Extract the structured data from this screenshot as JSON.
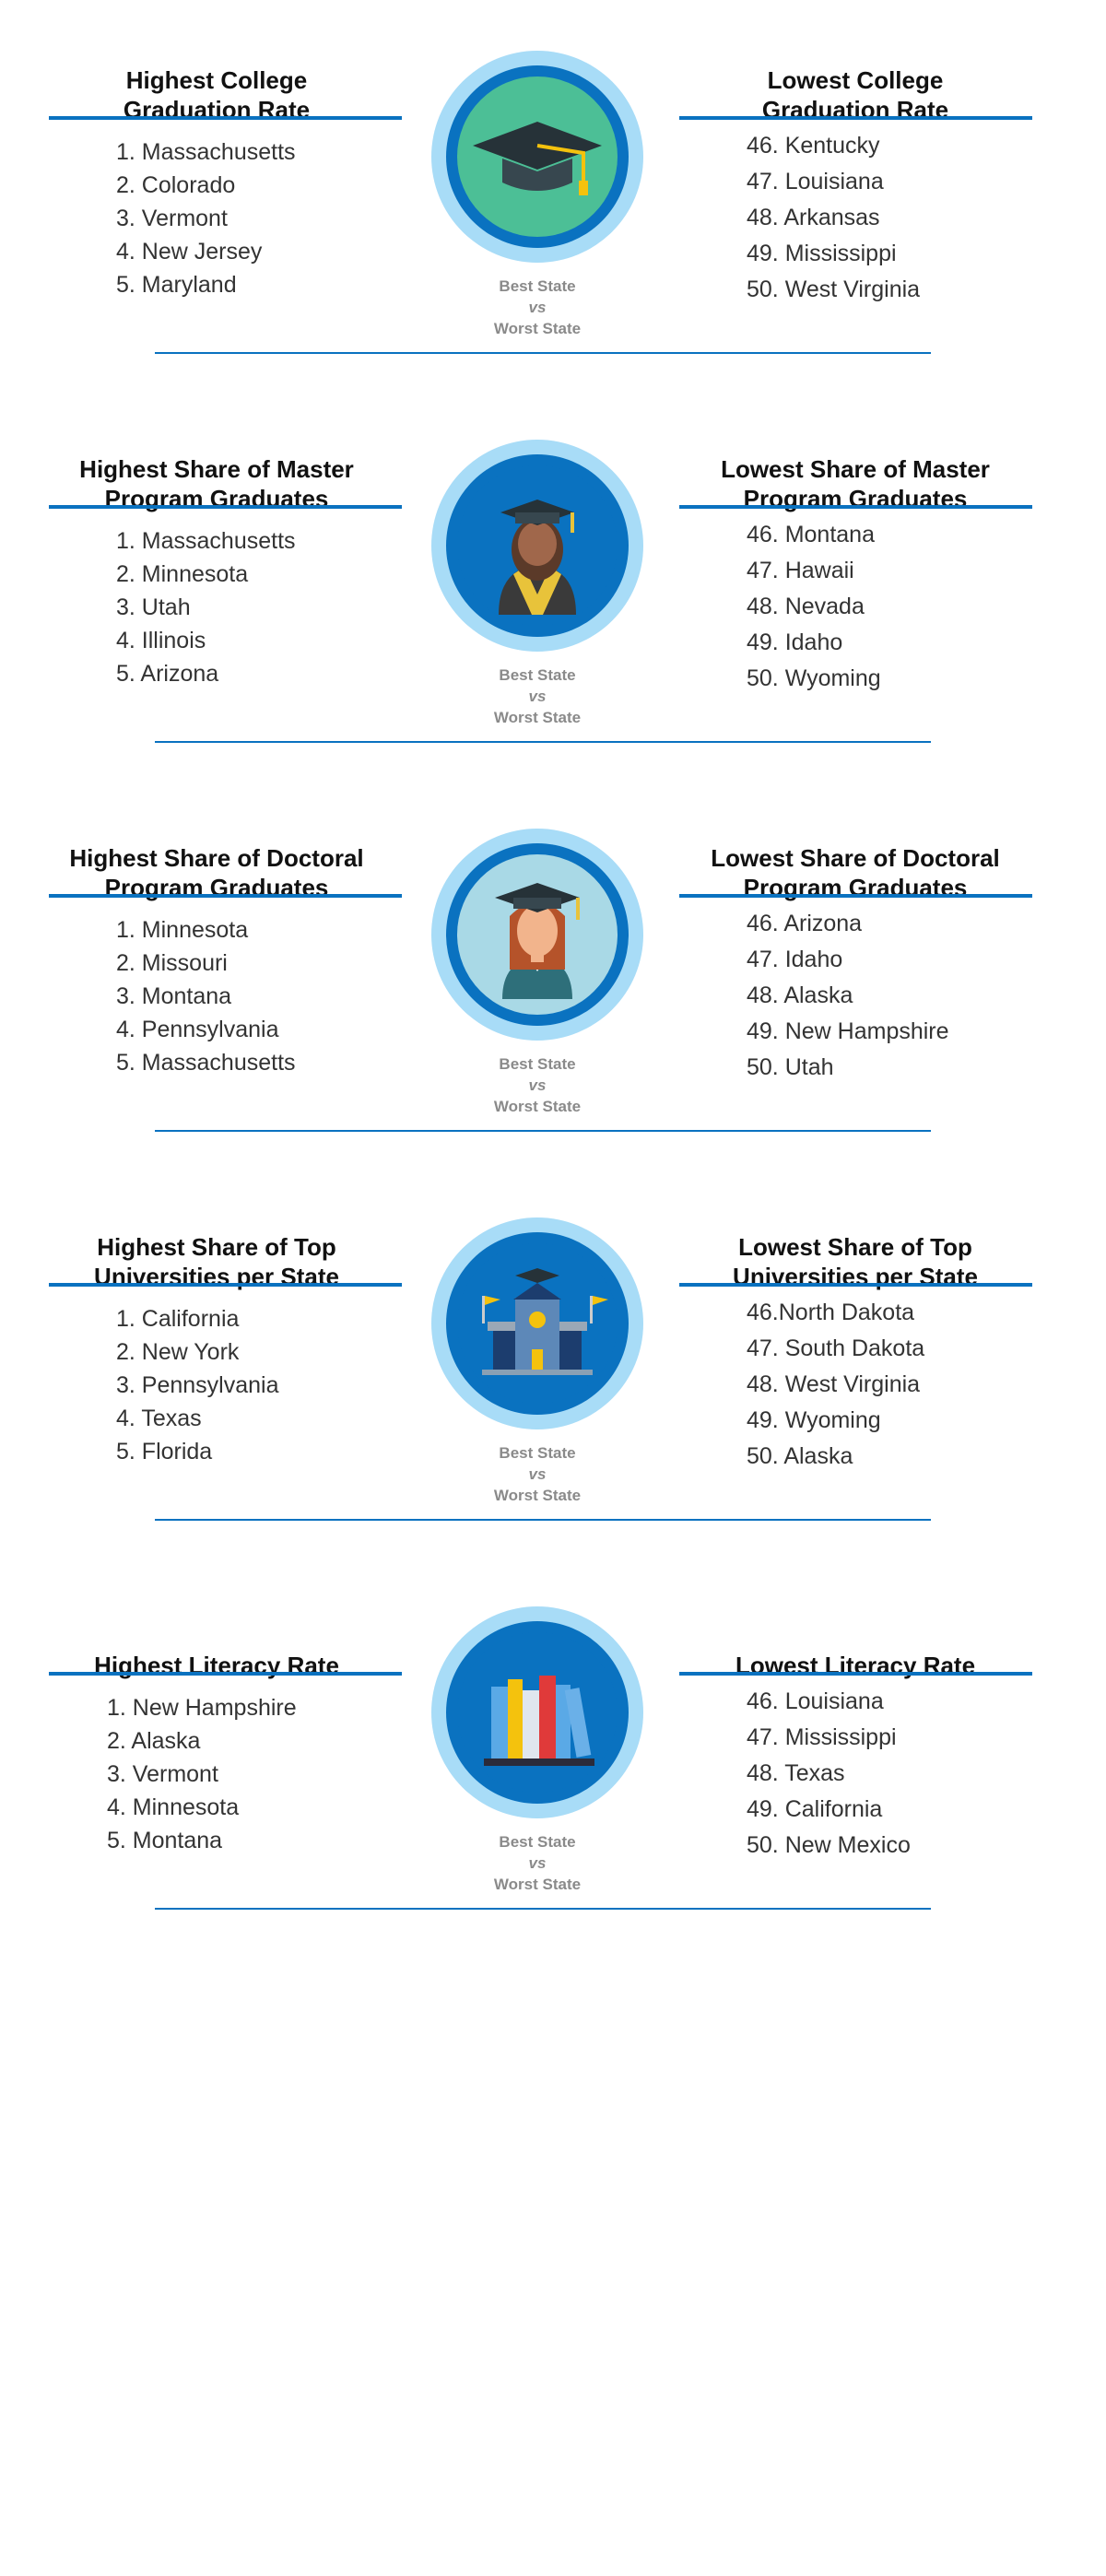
{
  "sections": [
    {
      "left": {
        "title": [
          "Highest College",
          "Graduation Rate"
        ],
        "items": [
          "1. Massachusetts",
          "2. Colorado",
          "3. Vermont",
          "4. New Jersey",
          "5. Maryland"
        ]
      },
      "center": [
        "Best State",
        "vs",
        "Worst State"
      ],
      "right": {
        "title": [
          "Lowest College",
          "Graduation Rate"
        ],
        "items": [
          "46. Kentucky",
          "47. Louisiana",
          "48. Arkansas",
          "49. Mississippi",
          "50. West Virginia"
        ]
      }
    },
    {
      "left": {
        "title": [
          "Highest Share of Master",
          "Program Graduates"
        ],
        "items": [
          "1. Massachusetts",
          "2. Minnesota",
          "3. Utah",
          "4. Illinois",
          "5. Arizona"
        ]
      },
      "center": [
        "Best State",
        "vs",
        "Worst State"
      ],
      "right": {
        "title": [
          "Lowest Share of Master",
          "Program Graduates"
        ],
        "items": [
          "46. Montana",
          "47. Hawaii",
          "48. Nevada",
          "49. Idaho",
          "50. Wyoming"
        ]
      }
    },
    {
      "left": {
        "title": [
          "Highest Share of Doctoral",
          "Program Graduates"
        ],
        "items": [
          "1. Minnesota",
          "2. Missouri",
          "3. Montana",
          "4. Pennsylvania",
          "5. Massachusetts"
        ]
      },
      "center": [
        "Best State",
        "vs",
        "Worst State"
      ],
      "right": {
        "title": [
          "Lowest Share of Doctoral",
          "Program Graduates"
        ],
        "items": [
          "46. Arizona",
          "47. Idaho",
          "48. Alaska",
          "49. New Hampshire",
          "50. Utah"
        ]
      }
    },
    {
      "left": {
        "title": [
          "Highest Share of Top",
          "Universities per State"
        ],
        "items": [
          "1. California",
          "2. New York",
          "3. Pennsylvania",
          "4. Texas",
          "5. Florida"
        ]
      },
      "center": [
        "Best State",
        "vs",
        "Worst State"
      ],
      "right": {
        "title": [
          "Lowest Share of Top",
          "Universities per State"
        ],
        "items": [
          "46.North Dakota",
          "47. South Dakota",
          "48. West Virginia",
          "49. Wyoming",
          "50. Alaska"
        ]
      }
    },
    {
      "left": {
        "title": [
          "Highest Literacy Rate"
        ],
        "items": [
          "1. New Hampshire",
          "2. Alaska",
          "3. Vermont",
          "4. Minnesota",
          "5. Montana"
        ]
      },
      "center": [
        "Best State",
        "vs",
        "Worst State"
      ],
      "right": {
        "title": [
          "Lowest Literacy Rate"
        ],
        "items": [
          "46. Louisiana",
          "47. Mississippi",
          "48. Texas",
          "49. California",
          "50. New Mexico"
        ]
      }
    }
  ]
}
